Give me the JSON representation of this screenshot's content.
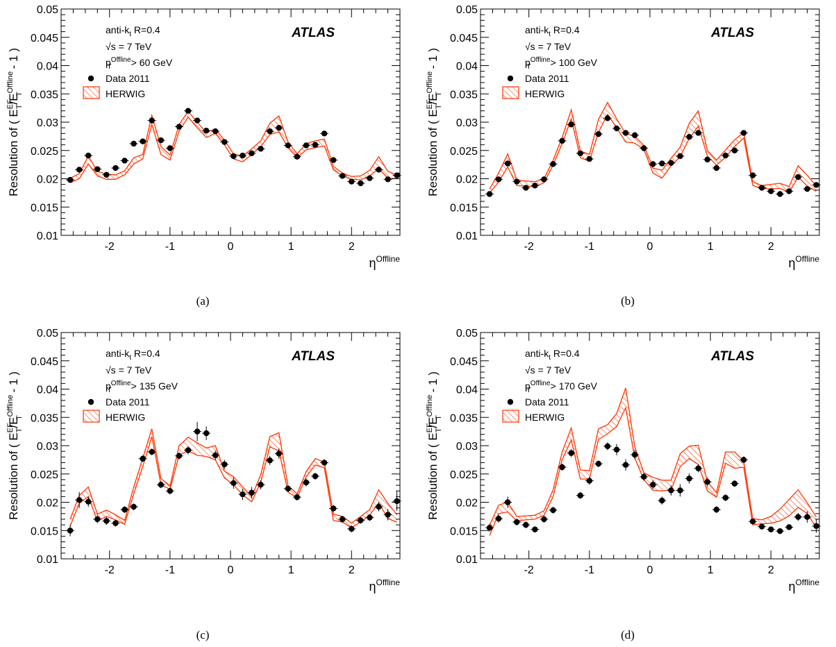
{
  "figure": {
    "captions": [
      "(a)",
      "(b)",
      "(c)",
      "(d)"
    ]
  },
  "colors": {
    "data": "#000000",
    "herwig": "#ff3300"
  },
  "chart_data": [
    {
      "type": "scatter",
      "label": "(a)",
      "experiment": "ATLAS",
      "algorithm": "anti-k",
      "algorithm_sub": "t",
      "radius": "R=0.4",
      "energy": "√s = 7 TeV",
      "cut_prefix": "p",
      "cut_sub": "T",
      "cut_sup": "Offline",
      "cut_suffix": "> 60 GeV",
      "xlabel": "η",
      "xlabel_sup": "Offline",
      "ylabel": "Resolution of ( E_T^EF/E_T^Offline - 1 )",
      "xlim": [
        -2.8,
        2.8
      ],
      "ylim": [
        0.01,
        0.05
      ],
      "grid": false,
      "legend_position": "top-left",
      "x_ticks": [
        -2,
        -1,
        0,
        1,
        2
      ],
      "y_ticks": [
        0.01,
        0.015,
        0.02,
        0.025,
        0.03,
        0.035,
        0.04,
        0.045,
        0.05
      ],
      "x": [
        -2.65,
        -2.5,
        -2.35,
        -2.2,
        -2.05,
        -1.9,
        -1.75,
        -1.6,
        -1.45,
        -1.3,
        -1.15,
        -1.0,
        -0.85,
        -0.7,
        -0.55,
        -0.4,
        -0.25,
        -0.1,
        0.05,
        0.2,
        0.35,
        0.5,
        0.65,
        0.8,
        0.95,
        1.1,
        1.25,
        1.4,
        1.55,
        1.7,
        1.85,
        2.0,
        2.15,
        2.3,
        2.45,
        2.6,
        2.75
      ],
      "series": [
        {
          "name": "Data 2011",
          "style": "markers",
          "y": [
            0.0198,
            0.0216,
            0.0241,
            0.0217,
            0.0207,
            0.0219,
            0.0232,
            0.0262,
            0.0266,
            0.0303,
            0.0268,
            0.0254,
            0.0292,
            0.032,
            0.0303,
            0.0285,
            0.0284,
            0.0265,
            0.024,
            0.0241,
            0.0245,
            0.0253,
            0.0284,
            0.029,
            0.0259,
            0.0239,
            0.0259,
            0.026,
            0.028,
            0.0233,
            0.0205,
            0.0195,
            0.0192,
            0.0201,
            0.0216,
            0.0199,
            0.0206
          ],
          "err": [
            0.0003,
            0.0003,
            0.0003,
            0.0003,
            0.0003,
            0.0003,
            0.0003,
            0.0003,
            0.0003,
            0.0003,
            0.0003,
            0.0003,
            0.0003,
            0.0003,
            0.0003,
            0.0003,
            0.0003,
            0.0003,
            0.0003,
            0.0003,
            0.0003,
            0.0003,
            0.0003,
            0.0003,
            0.0003,
            0.0003,
            0.0003,
            0.0003,
            0.0003,
            0.0003,
            0.0003,
            0.0003,
            0.0003,
            0.0003,
            0.0003,
            0.0003,
            0.0003
          ]
        },
        {
          "name": "HERWIG",
          "style": "hatched-band",
          "low": [
            0.0193,
            0.02,
            0.0226,
            0.0205,
            0.0199,
            0.0199,
            0.0207,
            0.0226,
            0.0235,
            0.0296,
            0.0243,
            0.0233,
            0.0284,
            0.0309,
            0.029,
            0.0273,
            0.028,
            0.026,
            0.0235,
            0.023,
            0.0243,
            0.0257,
            0.0278,
            0.0283,
            0.0255,
            0.0237,
            0.0251,
            0.0255,
            0.0258,
            0.0216,
            0.0205,
            0.0199,
            0.0198,
            0.0205,
            0.0218,
            0.0201,
            0.02
          ],
          "high": [
            0.0201,
            0.0209,
            0.024,
            0.0213,
            0.0208,
            0.0207,
            0.0214,
            0.0237,
            0.0243,
            0.0312,
            0.0257,
            0.0242,
            0.0296,
            0.0319,
            0.03,
            0.0282,
            0.0288,
            0.0268,
            0.0244,
            0.024,
            0.0253,
            0.0267,
            0.0298,
            0.0311,
            0.0265,
            0.0244,
            0.0262,
            0.0267,
            0.027,
            0.0222,
            0.021,
            0.0204,
            0.0205,
            0.0215,
            0.0239,
            0.0213,
            0.0207
          ]
        }
      ]
    },
    {
      "type": "scatter",
      "label": "(b)",
      "experiment": "ATLAS",
      "algorithm": "anti-k",
      "algorithm_sub": "t",
      "radius": "R=0.4",
      "energy": "√s = 7 TeV",
      "cut_prefix": "p",
      "cut_sub": "T",
      "cut_sup": "Offline",
      "cut_suffix": "> 100 GeV",
      "xlabel": "η",
      "xlabel_sup": "Offline",
      "ylabel": "Resolution of ( E_T^EF/E_T^Offline - 1 )",
      "xlim": [
        -2.8,
        2.8
      ],
      "ylim": [
        0.01,
        0.05
      ],
      "grid": false,
      "legend_position": "top-left",
      "x_ticks": [
        -2,
        -1,
        0,
        1,
        2
      ],
      "y_ticks": [
        0.01,
        0.015,
        0.02,
        0.025,
        0.03,
        0.035,
        0.04,
        0.045,
        0.05
      ],
      "x": [
        -2.65,
        -2.5,
        -2.35,
        -2.2,
        -2.05,
        -1.9,
        -1.75,
        -1.6,
        -1.45,
        -1.3,
        -1.15,
        -1.0,
        -0.85,
        -0.7,
        -0.55,
        -0.4,
        -0.25,
        -0.1,
        0.05,
        0.2,
        0.35,
        0.5,
        0.65,
        0.8,
        0.95,
        1.1,
        1.25,
        1.4,
        1.55,
        1.7,
        1.85,
        2.0,
        2.15,
        2.3,
        2.45,
        2.6,
        2.75
      ],
      "series": [
        {
          "name": "Data 2011",
          "style": "markers",
          "y": [
            0.0173,
            0.0199,
            0.0227,
            0.0195,
            0.0184,
            0.0188,
            0.0199,
            0.0226,
            0.0267,
            0.0296,
            0.0245,
            0.0235,
            0.0279,
            0.0307,
            0.0289,
            0.0281,
            0.0277,
            0.0254,
            0.0226,
            0.0227,
            0.0228,
            0.024,
            0.0274,
            0.0281,
            0.0234,
            0.0219,
            0.0241,
            0.025,
            0.0281,
            0.0206,
            0.0184,
            0.0178,
            0.0173,
            0.0178,
            0.0203,
            0.0182,
            0.0189
          ],
          "err": [
            0.0004,
            0.0004,
            0.0004,
            0.0004,
            0.0004,
            0.0004,
            0.0004,
            0.0004,
            0.0004,
            0.0004,
            0.0004,
            0.0004,
            0.0004,
            0.0004,
            0.0004,
            0.0004,
            0.0004,
            0.0004,
            0.0004,
            0.0004,
            0.0004,
            0.0004,
            0.0004,
            0.0004,
            0.0004,
            0.0004,
            0.0004,
            0.0004,
            0.0004,
            0.0004,
            0.0004,
            0.0004,
            0.0004,
            0.0004,
            0.0004,
            0.0004,
            0.0004
          ]
        },
        {
          "name": "HERWIG",
          "style": "hatched-band",
          "low": [
            0.0175,
            0.0194,
            0.0221,
            0.0188,
            0.0187,
            0.0186,
            0.0193,
            0.0224,
            0.0262,
            0.0306,
            0.0237,
            0.0231,
            0.0282,
            0.0314,
            0.029,
            0.0265,
            0.0263,
            0.0252,
            0.021,
            0.0201,
            0.0223,
            0.0239,
            0.0271,
            0.0293,
            0.024,
            0.0224,
            0.0238,
            0.0257,
            0.0272,
            0.0188,
            0.0183,
            0.0182,
            0.0183,
            0.0176,
            0.0203,
            0.0187,
            0.0178
          ],
          "high": [
            0.0182,
            0.021,
            0.0244,
            0.0198,
            0.0196,
            0.0195,
            0.02,
            0.0233,
            0.0273,
            0.0322,
            0.0249,
            0.0243,
            0.0305,
            0.0335,
            0.0306,
            0.028,
            0.0275,
            0.0259,
            0.0219,
            0.0215,
            0.0236,
            0.0256,
            0.0298,
            0.032,
            0.025,
            0.0233,
            0.0251,
            0.0269,
            0.0282,
            0.0195,
            0.0188,
            0.019,
            0.0192,
            0.0186,
            0.0223,
            0.0206,
            0.0187
          ]
        }
      ]
    },
    {
      "type": "scatter",
      "label": "(c)",
      "experiment": "ATLAS",
      "algorithm": "anti-k",
      "algorithm_sub": "t",
      "radius": "R=0.4",
      "energy": "√s = 7 TeV",
      "cut_prefix": "p",
      "cut_sub": "T",
      "cut_sup": "Offline",
      "cut_suffix": "> 135 GeV",
      "xlabel": "η",
      "xlabel_sup": "Offline",
      "ylabel": "Resolution of ( E_T^EF/E_T^Offline - 1 )",
      "xlim": [
        -2.8,
        2.8
      ],
      "ylim": [
        0.01,
        0.05
      ],
      "grid": false,
      "legend_position": "top-left",
      "x_ticks": [
        -2,
        -1,
        0,
        1,
        2
      ],
      "y_ticks": [
        0.01,
        0.015,
        0.02,
        0.025,
        0.03,
        0.035,
        0.04,
        0.045,
        0.05
      ],
      "x": [
        -2.65,
        -2.5,
        -2.35,
        -2.2,
        -2.05,
        -1.9,
        -1.75,
        -1.6,
        -1.45,
        -1.3,
        -1.15,
        -1.0,
        -0.85,
        -0.7,
        -0.55,
        -0.4,
        -0.25,
        -0.1,
        0.05,
        0.2,
        0.35,
        0.5,
        0.65,
        0.8,
        0.95,
        1.1,
        1.25,
        1.4,
        1.55,
        1.7,
        1.85,
        2.0,
        2.15,
        2.3,
        2.45,
        2.6,
        2.75
      ],
      "series": [
        {
          "name": "Data 2011",
          "style": "markers",
          "y": [
            0.015,
            0.0204,
            0.0201,
            0.017,
            0.0167,
            0.0163,
            0.0187,
            0.0192,
            0.0277,
            0.0289,
            0.0231,
            0.022,
            0.0282,
            0.0292,
            0.0325,
            0.0322,
            0.0283,
            0.0267,
            0.0234,
            0.0214,
            0.0217,
            0.0231,
            0.0274,
            0.0286,
            0.0224,
            0.0209,
            0.0235,
            0.0246,
            0.027,
            0.0189,
            0.017,
            0.0153,
            0.0168,
            0.0173,
            0.0192,
            0.0178,
            0.0202
          ],
          "err": [
            0.001,
            0.0014,
            0.0009,
            0.0007,
            0.0007,
            0.0006,
            0.0006,
            0.0006,
            0.0006,
            0.0006,
            0.0006,
            0.0006,
            0.0006,
            0.0007,
            0.0017,
            0.0012,
            0.0008,
            0.0008,
            0.001,
            0.001,
            0.001,
            0.0008,
            0.0008,
            0.0009,
            0.0006,
            0.0006,
            0.0007,
            0.0006,
            0.0006,
            0.0006,
            0.0006,
            0.0006,
            0.0006,
            0.0006,
            0.0008,
            0.001,
            0.0017
          ]
        },
        {
          "name": "HERWIG",
          "style": "hatched-band",
          "low": [
            0.0158,
            0.0198,
            0.021,
            0.0167,
            0.0175,
            0.0169,
            0.0161,
            0.0215,
            0.0263,
            0.0316,
            0.0231,
            0.0223,
            0.0283,
            0.0291,
            0.0283,
            0.0281,
            0.0275,
            0.0243,
            0.0231,
            0.0213,
            0.0201,
            0.0235,
            0.0298,
            0.0291,
            0.0218,
            0.0208,
            0.0245,
            0.0266,
            0.0261,
            0.0168,
            0.0165,
            0.0155,
            0.0165,
            0.0177,
            0.0199,
            0.0171,
            0.0165
          ],
          "high": [
            0.017,
            0.0212,
            0.0227,
            0.0179,
            0.0186,
            0.0178,
            0.0168,
            0.0227,
            0.0278,
            0.033,
            0.0242,
            0.0229,
            0.03,
            0.0315,
            0.0305,
            0.0296,
            0.03,
            0.0255,
            0.0245,
            0.0227,
            0.021,
            0.0249,
            0.0316,
            0.0323,
            0.0229,
            0.0215,
            0.0254,
            0.0277,
            0.0271,
            0.0179,
            0.0175,
            0.0163,
            0.0175,
            0.0187,
            0.0222,
            0.0198,
            0.0178
          ]
        }
      ]
    },
    {
      "type": "scatter",
      "label": "(d)",
      "experiment": "ATLAS",
      "algorithm": "anti-k",
      "algorithm_sub": "t",
      "radius": "R=0.4",
      "energy": "√s = 7 TeV",
      "cut_prefix": "p",
      "cut_sub": "T",
      "cut_sup": "Offline",
      "cut_suffix": "> 170 GeV",
      "xlabel": "η",
      "xlabel_sup": "Offline",
      "ylabel": "Resolution of ( E_T^EF/E_T^Offline - 1 )",
      "xlim": [
        -2.8,
        2.8
      ],
      "ylim": [
        0.01,
        0.05
      ],
      "grid": false,
      "legend_position": "top-left",
      "x_ticks": [
        -2,
        -1,
        0,
        1,
        2
      ],
      "y_ticks": [
        0.01,
        0.015,
        0.02,
        0.025,
        0.03,
        0.035,
        0.04,
        0.045,
        0.05
      ],
      "x": [
        -2.65,
        -2.5,
        -2.35,
        -2.2,
        -2.05,
        -1.9,
        -1.75,
        -1.6,
        -1.45,
        -1.3,
        -1.15,
        -1.0,
        -0.85,
        -0.7,
        -0.55,
        -0.4,
        -0.25,
        -0.1,
        0.05,
        0.2,
        0.35,
        0.5,
        0.65,
        0.8,
        0.95,
        1.1,
        1.25,
        1.4,
        1.55,
        1.7,
        1.85,
        2.0,
        2.15,
        2.3,
        2.45,
        2.6,
        2.75
      ],
      "series": [
        {
          "name": "Data 2011",
          "style": "markers",
          "y": [
            0.0155,
            0.0171,
            0.02,
            0.0165,
            0.016,
            0.0152,
            0.017,
            0.0186,
            0.0262,
            0.0287,
            0.0212,
            0.0238,
            0.0268,
            0.0299,
            0.0293,
            0.0266,
            0.0284,
            0.0245,
            0.0231,
            0.0203,
            0.0221,
            0.0221,
            0.0242,
            0.026,
            0.0236,
            0.0187,
            0.0208,
            0.0233,
            0.0275,
            0.0166,
            0.0157,
            0.0152,
            0.0149,
            0.0156,
            0.0174,
            0.0174,
            0.0158
          ],
          "err": [
            0.0007,
            0.0007,
            0.001,
            0.0006,
            0.0006,
            0.0005,
            0.0006,
            0.0006,
            0.0006,
            0.0007,
            0.0006,
            0.0007,
            0.0006,
            0.0007,
            0.001,
            0.001,
            0.0008,
            0.0007,
            0.0008,
            0.0007,
            0.0009,
            0.0011,
            0.0009,
            0.0007,
            0.0008,
            0.0006,
            0.0006,
            0.0006,
            0.0006,
            0.0005,
            0.0005,
            0.0005,
            0.0005,
            0.0005,
            0.0007,
            0.001,
            0.0012
          ]
        },
        {
          "name": "HERWIG",
          "style": "hatched-band",
          "low": [
            0.0141,
            0.018,
            0.0183,
            0.0167,
            0.0169,
            0.017,
            0.0177,
            0.021,
            0.0275,
            0.031,
            0.0241,
            0.0241,
            0.0311,
            0.0321,
            0.0334,
            0.0367,
            0.0278,
            0.024,
            0.0221,
            0.022,
            0.0222,
            0.0263,
            0.0277,
            0.0267,
            0.022,
            0.0209,
            0.0269,
            0.026,
            0.0262,
            0.016,
            0.0162,
            0.0163,
            0.0167,
            0.0176,
            0.0191,
            0.018,
            0.0155
          ],
          "high": [
            0.0159,
            0.0195,
            0.02,
            0.0175,
            0.0176,
            0.0177,
            0.0185,
            0.0222,
            0.0289,
            0.0331,
            0.0257,
            0.0256,
            0.033,
            0.0337,
            0.0357,
            0.0402,
            0.0298,
            0.0252,
            0.0244,
            0.0239,
            0.0239,
            0.0286,
            0.0299,
            0.0301,
            0.0236,
            0.0217,
            0.0289,
            0.0289,
            0.0273,
            0.0171,
            0.0169,
            0.0175,
            0.0188,
            0.0205,
            0.0222,
            0.0199,
            0.0174
          ]
        }
      ]
    }
  ]
}
